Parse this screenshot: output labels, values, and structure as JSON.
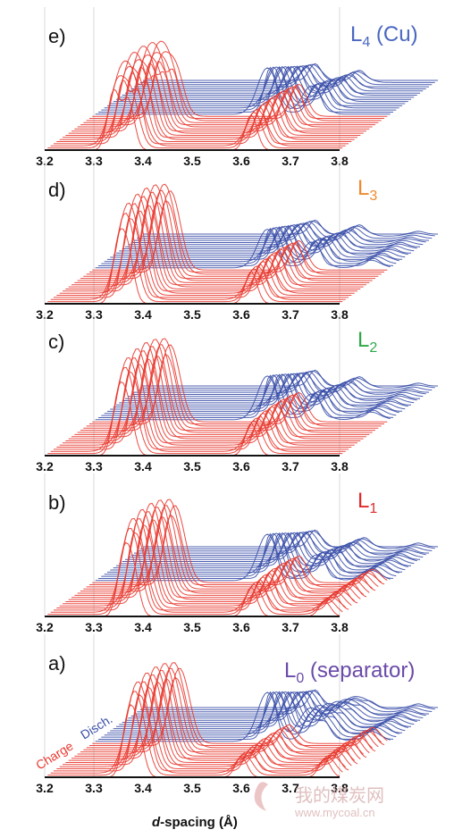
{
  "chart_data": {
    "type": "line",
    "xlabel_italic": "d",
    "xlabel_rest": "-spacing (Å)",
    "xticks": [
      "3.2",
      "3.3",
      "3.4",
      "3.5",
      "3.6",
      "3.7",
      "3.8"
    ],
    "xlim": [
      3.2,
      3.8
    ],
    "colors": {
      "charge": "#e8392f",
      "discharge": "#3a4fa8"
    },
    "side_labels": {
      "charge": "Charge",
      "discharge": "Disch."
    },
    "panels": [
      {
        "letter": "e)",
        "tag_main": "L",
        "tag_sub": "4",
        "tag_suffix": " (Cu)",
        "tag_color": "#4a66c0",
        "charge_peaks": [
          [
            3.34,
            1.0
          ],
          [
            3.37,
            0.85
          ],
          [
            3.62,
            0.6
          ]
        ],
        "discharge_peaks": [
          [
            3.55,
            0.9
          ],
          [
            3.64,
            0.55
          ]
        ]
      },
      {
        "letter": "d)",
        "tag_main": "L",
        "tag_sub": "3",
        "tag_suffix": "",
        "tag_color": "#f08a2c",
        "charge_peaks": [
          [
            3.35,
            1.0
          ],
          [
            3.37,
            0.8
          ],
          [
            3.62,
            0.55
          ]
        ],
        "discharge_peaks": [
          [
            3.55,
            0.75
          ],
          [
            3.64,
            0.5
          ],
          [
            3.76,
            0.15
          ]
        ]
      },
      {
        "letter": "c)",
        "tag_main": "L",
        "tag_sub": "2",
        "tag_suffix": "",
        "tag_color": "#2ea84a",
        "charge_peaks": [
          [
            3.35,
            1.0
          ],
          [
            3.37,
            0.75
          ],
          [
            3.62,
            0.55
          ]
        ],
        "discharge_peaks": [
          [
            3.55,
            0.85
          ],
          [
            3.64,
            0.5
          ],
          [
            3.76,
            0.15
          ]
        ]
      },
      {
        "letter": "b)",
        "tag_main": "L",
        "tag_sub": "1",
        "tag_suffix": "",
        "tag_color": "#e02a2a",
        "charge_peaks": [
          [
            3.36,
            1.0
          ],
          [
            3.38,
            0.75
          ],
          [
            3.62,
            0.5
          ],
          [
            3.77,
            0.25
          ]
        ],
        "discharge_peaks": [
          [
            3.55,
            0.9
          ],
          [
            3.65,
            0.5
          ],
          [
            3.76,
            0.2
          ]
        ]
      },
      {
        "letter": "a)",
        "tag_main": "L",
        "tag_sub": "0",
        "tag_suffix": " (separator)",
        "tag_color": "#6a4aa8",
        "charge_peaks": [
          [
            3.37,
            1.0
          ],
          [
            3.39,
            0.7
          ],
          [
            3.6,
            0.35
          ],
          [
            3.77,
            0.3
          ]
        ],
        "discharge_peaks": [
          [
            3.55,
            0.95
          ],
          [
            3.63,
            0.5
          ],
          [
            3.66,
            0.35
          ],
          [
            3.76,
            0.2
          ]
        ]
      }
    ]
  },
  "watermark": {
    "cn": "我的煤炭网",
    "url": "www.mycoal.cn"
  }
}
